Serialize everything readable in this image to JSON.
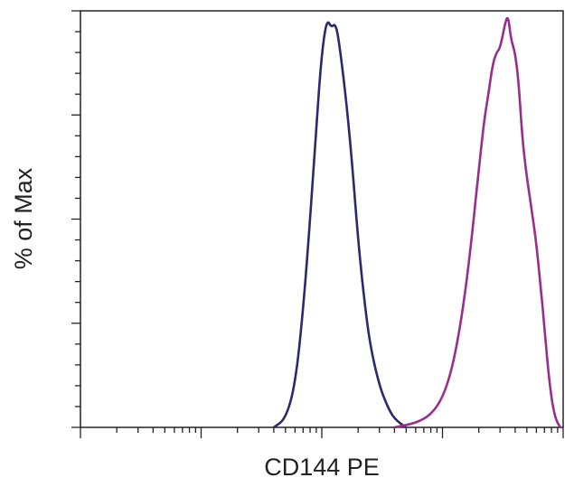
{
  "chart_data": {
    "type": "line",
    "title": "",
    "xlabel": "CD144 PE",
    "ylabel": "% of Max",
    "x_scale": "log",
    "xlim": [
      10,
      100000
    ],
    "ylim": [
      0,
      100
    ],
    "grid": false,
    "legend": "none",
    "series": [
      {
        "color": "#2a2a6e",
        "points": [
          [
            400,
            0
          ],
          [
            500,
            2
          ],
          [
            600,
            10
          ],
          [
            700,
            28
          ],
          [
            800,
            50
          ],
          [
            900,
            72
          ],
          [
            1000,
            90
          ],
          [
            1100,
            98
          ],
          [
            1200,
            96
          ],
          [
            1300,
            97
          ],
          [
            1400,
            92
          ],
          [
            1600,
            78
          ],
          [
            1800,
            62
          ],
          [
            2000,
            45
          ],
          [
            2200,
            33
          ],
          [
            2500,
            20
          ],
          [
            3000,
            10
          ],
          [
            3500,
            5
          ],
          [
            4000,
            2
          ],
          [
            5000,
            0
          ]
        ]
      },
      {
        "color": "#9b2d8a",
        "points": [
          [
            4000,
            0
          ],
          [
            6000,
            1
          ],
          [
            8000,
            3
          ],
          [
            10000,
            7
          ],
          [
            12000,
            14
          ],
          [
            14000,
            24
          ],
          [
            16000,
            36
          ],
          [
            18000,
            49
          ],
          [
            20000,
            62
          ],
          [
            22000,
            73
          ],
          [
            24000,
            80
          ],
          [
            26000,
            87
          ],
          [
            28000,
            90
          ],
          [
            30000,
            91
          ],
          [
            33000,
            97
          ],
          [
            35000,
            99
          ],
          [
            37000,
            93
          ],
          [
            40000,
            90
          ],
          [
            43000,
            82
          ],
          [
            46000,
            69
          ],
          [
            50000,
            60
          ],
          [
            55000,
            52
          ],
          [
            60000,
            44
          ],
          [
            65000,
            34
          ],
          [
            70000,
            24
          ],
          [
            75000,
            14
          ],
          [
            80000,
            7
          ],
          [
            85000,
            3
          ],
          [
            90000,
            1
          ],
          [
            95000,
            0
          ]
        ]
      }
    ]
  }
}
